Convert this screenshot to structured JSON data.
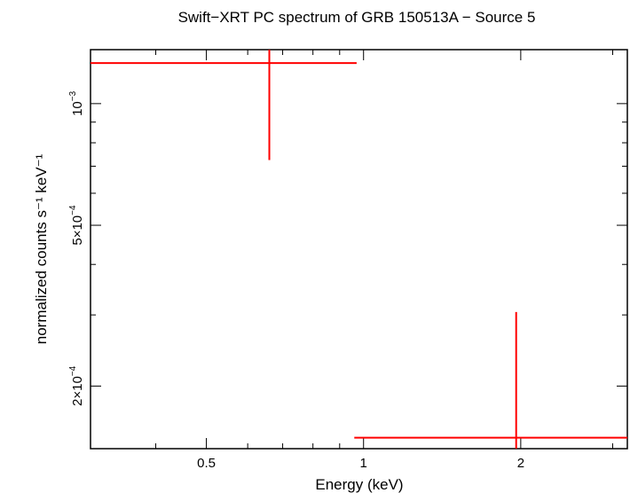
{
  "chart_data": {
    "type": "scatter",
    "title": "Swift−XRT PC spectrum of GRB 150513A − Source 5",
    "xlabel": "Energy (keV)",
    "ylabel": "normalized counts s⁻¹ keV⁻¹",
    "x_scale": "log",
    "y_scale": "log",
    "xlim": [
      0.3,
      3.2
    ],
    "ylim": [
      0.00014,
      0.00136
    ],
    "x_ticks": [
      {
        "value": 0.5,
        "label": "0.5"
      },
      {
        "value": 1,
        "label": "1"
      },
      {
        "value": 2,
        "label": "2"
      }
    ],
    "y_ticks": [
      {
        "value": 0.001,
        "label": "10⁻³"
      },
      {
        "value": 0.0005,
        "label": "5×10⁻⁴"
      },
      {
        "value": 0.0002,
        "label": "2×10⁻⁴"
      }
    ],
    "grid": false,
    "color": "#ff0000",
    "series": [
      {
        "points": [
          {
            "x": 0.66,
            "x_low": 0.3,
            "x_high": 0.97,
            "y": 0.00126,
            "y_low": 0.000725,
            "y_high": 0.00136
          },
          {
            "x": 1.96,
            "x_low": 0.96,
            "x_high": 3.2,
            "y": 0.000149,
            "y_low": 0.00014,
            "y_high": 0.000305
          }
        ]
      }
    ]
  }
}
